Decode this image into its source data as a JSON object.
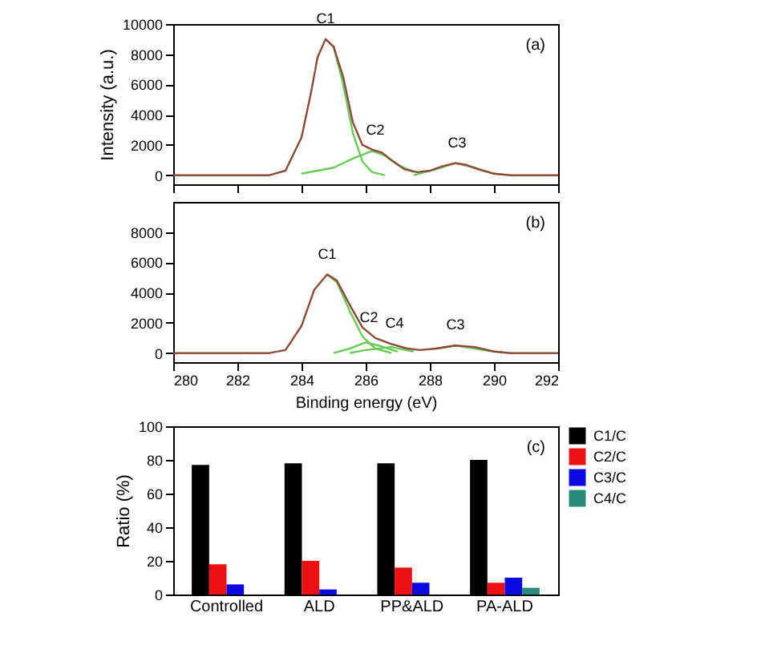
{
  "chart_data": [
    {
      "type": "line",
      "ylabel": "Intensity (a.u.)",
      "xlim": [
        280,
        292
      ],
      "xticks": [
        280,
        282,
        284,
        286,
        288,
        290,
        292
      ],
      "ylim": [
        -600,
        10000
      ],
      "yticks": [
        0,
        2000,
        4000,
        6000,
        8000,
        10000
      ],
      "tick_labels": "y",
      "grid": false,
      "series": [
        {
          "color": "#66cc55",
          "x": [
            284.75,
            285,
            285.3,
            285.6,
            285.9,
            286.2,
            286.6
          ],
          "values": [
            9000,
            8500,
            6000,
            2800,
            900,
            200,
            0
          ]
        },
        {
          "color": "#66cc55",
          "x": [
            284,
            285,
            285.6,
            286.2,
            286.6,
            287,
            287.5
          ],
          "values": [
            100,
            500,
            1100,
            1600,
            1300,
            700,
            200
          ]
        },
        {
          "color": "#66cc55",
          "x": [
            287.5,
            288.2,
            288.8,
            289.4,
            290,
            290.5
          ],
          "values": [
            0,
            400,
            800,
            500,
            100,
            0
          ]
        },
        {
          "color": "#8b4a3a",
          "x": [
            280,
            283,
            283.5,
            284,
            284.3,
            284.5,
            284.75,
            285,
            285.3,
            285.6,
            285.9,
            286.2,
            286.5,
            286.8,
            287.2,
            287.6,
            288,
            288.4,
            288.8,
            289.1,
            289.5,
            290,
            290.5,
            292
          ],
          "values": [
            0,
            0,
            300,
            2500,
            5500,
            7800,
            9000,
            8500,
            6500,
            3500,
            2000,
            1700,
            1500,
            1000,
            400,
            200,
            300,
            600,
            800,
            700,
            400,
            100,
            0,
            0
          ]
        }
      ],
      "annotations": [
        {
          "text": "C1",
          "x": 284.75,
          "y": 9000
        },
        {
          "text": "C2",
          "x": 286.3,
          "y": 1600
        },
        {
          "text": "C3",
          "x": 288.85,
          "y": 800
        },
        "(a)"
      ]
    },
    {
      "type": "line",
      "xlabel": "Binding energy (eV)",
      "xlim": [
        280,
        292
      ],
      "xticks": [
        280,
        282,
        284,
        286,
        288,
        290,
        292
      ],
      "ylim": [
        -600,
        10000
      ],
      "yticks": [
        0,
        2000,
        4000,
        6000,
        8000
      ],
      "grid": false,
      "series": [
        {
          "color": "#66cc55",
          "x": [
            284.8,
            285.1,
            285.5,
            285.9,
            286.3,
            286.8
          ],
          "values": [
            5200,
            4700,
            2800,
            1100,
            300,
            0
          ]
        },
        {
          "color": "#66cc55",
          "x": [
            285,
            285.5,
            286,
            286.4,
            287
          ],
          "values": [
            0,
            300,
            700,
            500,
            100
          ]
        },
        {
          "color": "#66cc55",
          "x": [
            285.5,
            286,
            286.8,
            287.5
          ],
          "values": [
            0,
            200,
            400,
            100
          ]
        },
        {
          "color": "#66cc55",
          "x": [
            288.2,
            288.8,
            289.4,
            290,
            290.5
          ],
          "values": [
            300,
            500,
            300,
            100,
            0
          ]
        },
        {
          "color": "#8b4a3a",
          "x": [
            280,
            283,
            283.5,
            284,
            284.4,
            284.8,
            285.1,
            285.5,
            285.9,
            286.3,
            286.8,
            287.3,
            287.7,
            288.2,
            288.8,
            289.4,
            290,
            290.5,
            292
          ],
          "values": [
            0,
            0,
            200,
            1800,
            4200,
            5200,
            4800,
            3200,
            1700,
            1000,
            600,
            300,
            200,
            300,
            500,
            400,
            100,
            0,
            0
          ]
        }
      ],
      "annotations": [
        {
          "text": "C1",
          "x": 284.8,
          "y": 5200
        },
        {
          "text": "C2",
          "x": 286.1,
          "y": 1000
        },
        {
          "text": "C4",
          "x": 286.9,
          "y": 600
        },
        {
          "text": "C3",
          "x": 288.8,
          "y": 500
        },
        "(b)"
      ]
    },
    {
      "type": "bar",
      "ylabel": "Ratio (%)",
      "categories": [
        "Controlled",
        "ALD",
        "PP&ALD",
        "PA-ALD"
      ],
      "ylim": [
        0,
        100
      ],
      "yticks": [
        0,
        20,
        40,
        60,
        80,
        100
      ],
      "grid": false,
      "legend": "right",
      "series": [
        {
          "name": "C1/C",
          "color": "#000000",
          "values": [
            77,
            78,
            78,
            80
          ]
        },
        {
          "name": "C2/C",
          "color": "#ee1111",
          "values": [
            18,
            20,
            16,
            7
          ]
        },
        {
          "name": "C3/C",
          "color": "#0a0ae0",
          "values": [
            6,
            3,
            7,
            10
          ]
        },
        {
          "name": "C4/C",
          "color": "#2a8a7a",
          "values": [
            null,
            null,
            null,
            4
          ]
        }
      ],
      "annotations": [
        "(c)"
      ]
    }
  ]
}
